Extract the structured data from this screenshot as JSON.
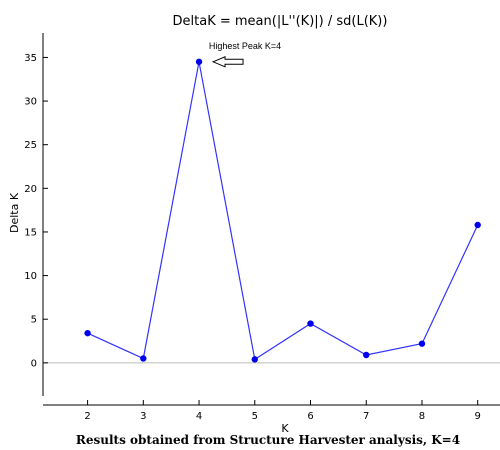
{
  "chart_data": {
    "type": "line",
    "title": "DeltaK = mean(|L''(K)|) / sd(L(K))",
    "xlabel": "K",
    "ylabel": "Delta K",
    "x": [
      2,
      3,
      4,
      5,
      6,
      7,
      8,
      9
    ],
    "series": [
      {
        "values": [
          3.4,
          0.5,
          34.5,
          0.4,
          4.5,
          0.9,
          2.2,
          15.8
        ]
      }
    ],
    "xlim": [
      1.2,
      9.4
    ],
    "ylim": [
      -3.8,
      37.8
    ],
    "yticks": [
      0,
      5,
      10,
      15,
      20,
      25,
      30,
      35
    ],
    "xticks": [
      2,
      3,
      4,
      5,
      6,
      7,
      8,
      9
    ],
    "annotation": {
      "text": "Highest Peak K=4",
      "x": 4,
      "y": 34.5
    },
    "line_color": "#3333ff",
    "marker_color": "#0000ee",
    "grid": false,
    "zero_line": true
  },
  "caption": "Results obtained from Structure Harvester analysis, K=4"
}
